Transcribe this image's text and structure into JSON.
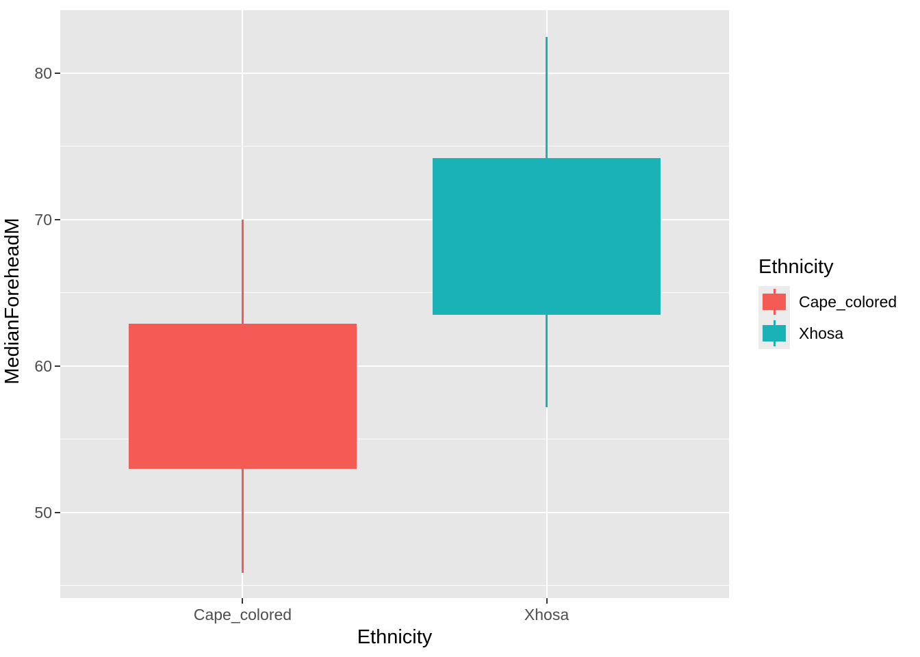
{
  "chart_data": {
    "type": "boxplot",
    "title": "",
    "xlabel": "Ethnicity",
    "ylabel": "MedianForeheadM",
    "categories": [
      "Cape_colored",
      "Xhosa"
    ],
    "y_major_ticks": [
      50,
      60,
      70,
      80
    ],
    "y_minor_ticks": [
      45,
      55,
      65,
      75
    ],
    "ylim": [
      44.15,
      84.3
    ],
    "series": [
      {
        "name": "Cape_colored",
        "color": "#F45B55",
        "stats": {
          "whisker_low": 45.9,
          "q1": 53.0,
          "q3": 62.9,
          "whisker_high": 70.0
        },
        "median_line_visible": false
      },
      {
        "name": "Xhosa",
        "color": "#1BB2B5",
        "stats": {
          "whisker_low": 57.2,
          "q1": 63.5,
          "q3": 74.2,
          "whisker_high": 82.5
        },
        "median_line_visible": false
      }
    ],
    "legend": {
      "title": "Ethnicity",
      "position": "right",
      "entries": [
        {
          "label": "Cape_colored",
          "color": "#F45B55"
        },
        {
          "label": "Xhosa",
          "color": "#1BB2B5"
        }
      ]
    },
    "style": {
      "panel_bg": "#E7E7E7",
      "grid_color": "#FFFFFF",
      "tick_color": "#333333",
      "tick_label_color": "#4D4D4D",
      "title_color": "#000000",
      "legend_key_bg": "#EBEBEB"
    }
  }
}
